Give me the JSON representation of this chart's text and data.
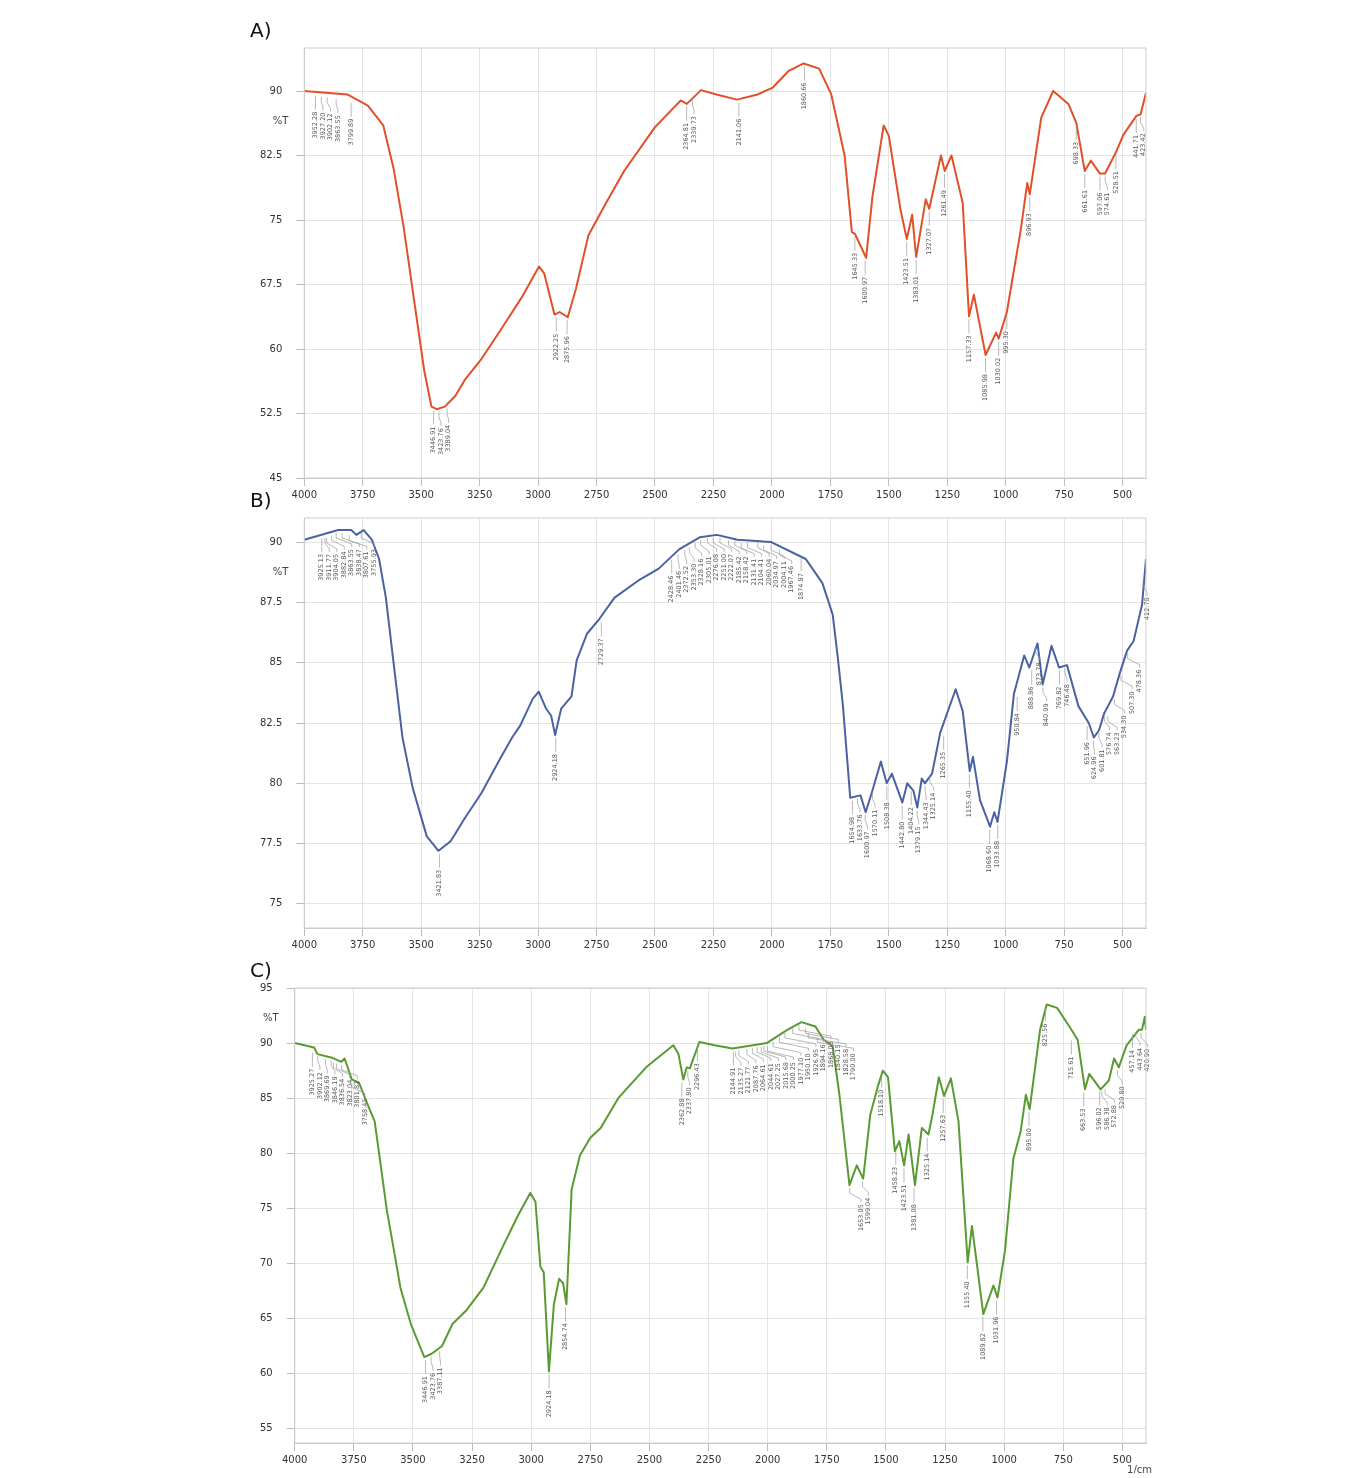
{
  "chart_data": [
    {
      "type": "line",
      "title": "A)",
      "ylabel": "%T",
      "xlim": [
        4000,
        400
      ],
      "xticks": [
        4000,
        3750,
        3500,
        3250,
        3000,
        2750,
        2500,
        2250,
        2000,
        1750,
        1500,
        1250,
        1000,
        750,
        500
      ],
      "ylim": [
        45,
        95
      ],
      "yticks": [
        45,
        52.5,
        60,
        67.5,
        75,
        82.5,
        90
      ],
      "grid": true,
      "series": [
        {
          "color": "#e0502a",
          "x": [
            4000,
            3816,
            3728,
            3662,
            3618,
            3575,
            3531,
            3487,
            3456,
            3434,
            3399,
            3355,
            3311,
            3246,
            3158,
            3070,
            2996,
            2974,
            2930,
            2908,
            2873,
            2838,
            2785,
            2719,
            2632,
            2500,
            2390,
            2364,
            2303,
            2237,
            2149,
            2061,
            1996,
            1930,
            1864,
            1798,
            1746,
            1689,
            1658,
            1645,
            1597,
            1570,
            1522,
            1500,
            1450,
            1423,
            1400,
            1383,
            1342,
            1327,
            1277,
            1261,
            1232,
            1184,
            1157,
            1136,
            1086,
            1041,
            1030,
            995,
            936,
            908,
            897,
            848,
            797,
            732,
            698,
            662,
            636,
            597,
            575,
            528,
            497,
            441,
            423,
            400
          ],
          "values": [
            90,
            89.6,
            88.3,
            86,
            81,
            74.2,
            65.8,
            57.5,
            53.3,
            53,
            53.3,
            54.5,
            56.5,
            58.7,
            62.3,
            66,
            69.6,
            68.8,
            64,
            64.3,
            63.7,
            67,
            73.2,
            76.5,
            80.7,
            85.8,
            88.9,
            88.5,
            90.1,
            89.6,
            89,
            89.6,
            90.4,
            92.3,
            93.2,
            92.6,
            89.6,
            82.5,
            73.6,
            73.4,
            70.6,
            77.7,
            86,
            84.8,
            76.2,
            72.8,
            75.6,
            70.7,
            77.4,
            76.3,
            82.5,
            80.7,
            82.5,
            77,
            63.8,
            66.3,
            59.3,
            61.9,
            61.2,
            64.3,
            73.8,
            79.3,
            78,
            86.9,
            90,
            88.5,
            86.3,
            80.7,
            81.9,
            80.4,
            80.4,
            82.9,
            84.9,
            87.1,
            87.3,
            89.8
          ]
        }
      ],
      "annotations": [
        {
          "text": "3952.28",
          "x": 3952.28,
          "y": 89.8
        },
        {
          "text": "3927.20",
          "x": 3927.2,
          "y": 89.7
        },
        {
          "text": "3902.12",
          "x": 3902.12,
          "y": 89.6
        },
        {
          "text": "3863.55",
          "x": 3863.55,
          "y": 89.4
        },
        {
          "text": "3799.89",
          "x": 3799.89,
          "y": 89
        },
        {
          "text": "3446.91",
          "x": 3446.91,
          "y": 53.2
        },
        {
          "text": "3423.76",
          "x": 3423.76,
          "y": 53
        },
        {
          "text": "3389.04",
          "x": 3389.04,
          "y": 53.4
        },
        {
          "text": "2922.25",
          "x": 2922.25,
          "y": 64
        },
        {
          "text": "2875.96",
          "x": 2875.96,
          "y": 63.7
        },
        {
          "text": "2364.81",
          "x": 2364.81,
          "y": 88.5
        },
        {
          "text": "2339.73",
          "x": 2339.73,
          "y": 89.3
        },
        {
          "text": "2141.06",
          "x": 2141.06,
          "y": 89
        },
        {
          "text": "1860.66",
          "x": 1860.66,
          "y": 93.2
        },
        {
          "text": "1645.33",
          "x": 1645.33,
          "y": 73.4
        },
        {
          "text": "1600.97",
          "x": 1600.97,
          "y": 70.6
        },
        {
          "text": "1423.51",
          "x": 1423.51,
          "y": 72.8
        },
        {
          "text": "1383.01",
          "x": 1383.01,
          "y": 70.7
        },
        {
          "text": "1327.07",
          "x": 1327.07,
          "y": 76.3
        },
        {
          "text": "1261.49",
          "x": 1261.49,
          "y": 80.7
        },
        {
          "text": "1157.33",
          "x": 1157.33,
          "y": 63.8
        },
        {
          "text": "1085.98",
          "x": 1085.98,
          "y": 59.3
        },
        {
          "text": "1030.02",
          "x": 1030.02,
          "y": 61.2
        },
        {
          "text": "995.30",
          "x": 995.3,
          "y": 64.3
        },
        {
          "text": "896.93",
          "x": 896.93,
          "y": 78
        },
        {
          "text": "698.33",
          "x": 698.33,
          "y": 86.3
        },
        {
          "text": "661.61",
          "x": 661.61,
          "y": 80.7
        },
        {
          "text": "597.06",
          "x": 597.06,
          "y": 80.4
        },
        {
          "text": "574.61",
          "x": 574.61,
          "y": 80.4
        },
        {
          "text": "528.51",
          "x": 528.51,
          "y": 82.9
        },
        {
          "text": "441.71",
          "x": 441.71,
          "y": 87.1
        },
        {
          "text": "423.42",
          "x": 423.42,
          "y": 87.3
        }
      ]
    },
    {
      "type": "line",
      "title": "B)",
      "ylabel": "%T",
      "xlim": [
        4000,
        400
      ],
      "xticks": [
        4000,
        3750,
        3500,
        3250,
        3000,
        2750,
        2500,
        2250,
        2000,
        1750,
        1500,
        1250,
        1000,
        750,
        500
      ],
      "ylim": [
        74,
        91
      ],
      "yticks": [
        75,
        77.5,
        80,
        82.5,
        85,
        87.5,
        90
      ],
      "grid": true,
      "series": [
        {
          "color": "#4a62a2",
          "x": [
            4000,
            3855,
            3799,
            3777,
            3746,
            3711,
            3680,
            3651,
            3623,
            3580,
            3536,
            3476,
            3426,
            3374,
            3317,
            3242,
            3169,
            3111,
            3076,
            3023,
            2997,
            2966,
            2944,
            2927,
            2901,
            2857,
            2835,
            2791,
            2739,
            2673,
            2572,
            2484,
            2397,
            2309,
            2235,
            2147,
            2003,
            1855,
            1784,
            1740,
            1718,
            1696,
            1665,
            1621,
            1599,
            1570,
            1534,
            1509,
            1487,
            1442,
            1421,
            1395,
            1378,
            1359,
            1346,
            1315,
            1280,
            1214,
            1184,
            1154,
            1140,
            1110,
            1067,
            1049,
            1035,
            995,
            965,
            921,
            899,
            864,
            842,
            804,
            772,
            738,
            689,
            645,
            623,
            601,
            579,
            541,
            511,
            481,
            453,
            417,
            400
          ],
          "values": [
            90.1,
            90.5,
            90.5,
            90.3,
            90.5,
            90.1,
            89.3,
            87.7,
            85.4,
            81.9,
            79.8,
            77.8,
            77.2,
            77.6,
            78.5,
            79.6,
            80.9,
            81.9,
            82.4,
            83.5,
            83.8,
            83.1,
            82.8,
            82,
            83.1,
            83.6,
            85.1,
            86.2,
            86.8,
            87.7,
            88.4,
            88.9,
            89.7,
            90.2,
            90.3,
            90.1,
            90,
            89.3,
            88.3,
            87,
            85.2,
            83.2,
            79.4,
            79.5,
            78.8,
            79.7,
            80.9,
            80,
            80.4,
            79.2,
            80,
            79.7,
            79,
            80.2,
            80,
            80.4,
            82.1,
            83.9,
            83,
            80.5,
            81.1,
            79.3,
            78.2,
            78.8,
            78.4,
            80.9,
            83.7,
            85.3,
            84.8,
            85.8,
            84.1,
            85.7,
            84.8,
            84.9,
            83.2,
            82.5,
            81.9,
            82.2,
            82.9,
            83.6,
            84.6,
            85.5,
            85.9,
            87.4,
            89.3
          ]
        }
      ],
      "annotations": [
        {
          "text": "3925.13",
          "x": 3925.13,
          "y": 90.3
        },
        {
          "text": "3911.77",
          "x": 3911.77,
          "y": 90.3
        },
        {
          "text": "3904.05",
          "x": 3904.05,
          "y": 90.3
        },
        {
          "text": "3882.84",
          "x": 3882.84,
          "y": 90.4
        },
        {
          "text": "3863.55",
          "x": 3863.55,
          "y": 90.5
        },
        {
          "text": "3838.47",
          "x": 3838.47,
          "y": 90.5
        },
        {
          "text": "3807.61",
          "x": 3807.61,
          "y": 90.4
        },
        {
          "text": "3755.93",
          "x": 3755.93,
          "y": 90.5
        },
        {
          "text": "3421.83",
          "x": 3421.83,
          "y": 77.2
        },
        {
          "text": "2924.18",
          "x": 2924.18,
          "y": 82
        },
        {
          "text": "2729.37",
          "x": 2729.37,
          "y": 86.8
        },
        {
          "text": "2428.46",
          "x": 2428.46,
          "y": 89.4
        },
        {
          "text": "2401.46",
          "x": 2401.46,
          "y": 89.6
        },
        {
          "text": "2372.52",
          "x": 2372.52,
          "y": 89.8
        },
        {
          "text": "2353.30",
          "x": 2353.3,
          "y": 89.9
        },
        {
          "text": "2328.16",
          "x": 2328.16,
          "y": 90.1
        },
        {
          "text": "2305.01",
          "x": 2305.01,
          "y": 90.2
        },
        {
          "text": "2276.08",
          "x": 2276.08,
          "y": 90.3
        },
        {
          "text": "2251.00",
          "x": 2251,
          "y": 90.3
        },
        {
          "text": "2222.07",
          "x": 2222.07,
          "y": 90.3
        },
        {
          "text": "2185.42",
          "x": 2185.42,
          "y": 90.2
        },
        {
          "text": "2158.42",
          "x": 2158.42,
          "y": 90.2
        },
        {
          "text": "2131.41",
          "x": 2131.41,
          "y": 90.1
        },
        {
          "text": "2104.41",
          "x": 2104.41,
          "y": 90.1
        },
        {
          "text": "2060.04",
          "x": 2060.04,
          "y": 90.1
        },
        {
          "text": "2034.97",
          "x": 2034.97,
          "y": 90
        },
        {
          "text": "2004.11",
          "x": 2004.11,
          "y": 90
        },
        {
          "text": "1967.46",
          "x": 1967.46,
          "y": 89.8
        },
        {
          "text": "1874.87",
          "x": 1874.87,
          "y": 89.5
        },
        {
          "text": "1654.98",
          "x": 1654.98,
          "y": 79.4
        },
        {
          "text": "1633.76",
          "x": 1633.76,
          "y": 79.5
        },
        {
          "text": "1600.97",
          "x": 1600.97,
          "y": 78.8
        },
        {
          "text": "1570.11",
          "x": 1570.11,
          "y": 79.7
        },
        {
          "text": "1508.38",
          "x": 1508.38,
          "y": 80
        },
        {
          "text": "1442.80",
          "x": 1442.8,
          "y": 79.2
        },
        {
          "text": "1404.22",
          "x": 1404.22,
          "y": 79.8
        },
        {
          "text": "1379.15",
          "x": 1379.15,
          "y": 79
        },
        {
          "text": "1344.43",
          "x": 1344.43,
          "y": 80
        },
        {
          "text": "1325.14",
          "x": 1325.14,
          "y": 80.4
        },
        {
          "text": "1265.35",
          "x": 1265.35,
          "y": 82.1
        },
        {
          "text": "1155.40",
          "x": 1155.4,
          "y": 80.5
        },
        {
          "text": "1068.60",
          "x": 1068.6,
          "y": 78.2
        },
        {
          "text": "1033.88",
          "x": 1033.88,
          "y": 78.4
        },
        {
          "text": "950.84",
          "x": 950.84,
          "y": 83.7
        },
        {
          "text": "888.86",
          "x": 888.86,
          "y": 84.8
        },
        {
          "text": "873.78",
          "x": 873.78,
          "y": 85.8
        },
        {
          "text": "840.99",
          "x": 840.99,
          "y": 84.1
        },
        {
          "text": "769.82",
          "x": 769.82,
          "y": 84.8
        },
        {
          "text": "746.48",
          "x": 746.48,
          "y": 84.9
        },
        {
          "text": "651.96",
          "x": 651.96,
          "y": 82.5
        },
        {
          "text": "624.96",
          "x": 624.96,
          "y": 81.9
        },
        {
          "text": "601.81",
          "x": 601.81,
          "y": 82.2
        },
        {
          "text": "576.74",
          "x": 576.74,
          "y": 82.9
        },
        {
          "text": "563.23",
          "x": 563.23,
          "y": 82.9
        },
        {
          "text": "534.30",
          "x": 534.3,
          "y": 83.6
        },
        {
          "text": "507.30",
          "x": 507.3,
          "y": 84.6
        },
        {
          "text": "478.36",
          "x": 478.36,
          "y": 85.5
        },
        {
          "text": "412.78",
          "x": 412.78,
          "y": 88.5
        }
      ]
    },
    {
      "type": "line",
      "title": "C)",
      "xlabel": "1/cm",
      "ylabel": "%T",
      "xlim": [
        4000,
        400
      ],
      "xticks": [
        4000,
        3750,
        3500,
        3250,
        3000,
        2750,
        2500,
        2250,
        2000,
        1750,
        1500,
        1250,
        1000,
        750,
        500
      ],
      "ylim": [
        53.7,
        95
      ],
      "yticks": [
        55,
        60,
        65,
        70,
        75,
        80,
        85,
        90,
        95
      ],
      "grid": true,
      "series": [
        {
          "color": "#5a9a32",
          "x": [
            4000,
            3918,
            3904,
            3846,
            3803,
            3789,
            3759,
            3728,
            3699,
            3662,
            3640,
            3611,
            3583,
            3553,
            3509,
            3452,
            3421,
            3377,
            3333,
            3276,
            3202,
            3114,
            3057,
            3004,
            2982,
            2961,
            2947,
            2925,
            2904,
            2882,
            2865,
            2851,
            2829,
            2794,
            2750,
            2706,
            2632,
            2514,
            2399,
            2377,
            2357,
            2342,
            2329,
            2289,
            2224,
            2149,
            2004,
            1917,
            1857,
            1798,
            1763,
            1725,
            1697,
            1654,
            1623,
            1596,
            1566,
            1535,
            1513,
            1491,
            1462,
            1443,
            1423,
            1404,
            1377,
            1348,
            1320,
            1303,
            1276,
            1254,
            1225,
            1193,
            1154,
            1136,
            1088,
            1045,
            1028,
            996,
            961,
            930,
            908,
            892,
            848,
            820,
            776,
            724,
            689,
            658,
            640,
            592,
            557,
            535,
            515,
            482,
            431,
            417,
            405,
            400
          ],
          "values": [
            90,
            89.6,
            89,
            88.7,
            88.3,
            88.6,
            86.7,
            86.4,
            84.8,
            82.9,
            79.5,
            74.9,
            71.5,
            67.8,
            64.5,
            61.5,
            61.8,
            62.5,
            64.5,
            65.7,
            67.8,
            71.8,
            74.3,
            76.4,
            75.6,
            69.7,
            69.2,
            60.2,
            66.3,
            68.6,
            68.2,
            66.3,
            76.7,
            79.8,
            81.4,
            82.3,
            85,
            87.8,
            89.8,
            89,
            86.7,
            87.8,
            87.7,
            90.1,
            89.8,
            89.5,
            90,
            91.2,
            91.9,
            91.5,
            90.3,
            89.7,
            85.4,
            77.1,
            78.9,
            77.7,
            83.5,
            86,
            87.5,
            86.9,
            80.2,
            81.1,
            78.9,
            81.7,
            77.1,
            82.3,
            81.7,
            83.5,
            86.9,
            85.2,
            86.8,
            82.9,
            70.1,
            73.4,
            65.4,
            68,
            66.9,
            71.2,
            79.5,
            82,
            85.3,
            84,
            91.2,
            93.5,
            93.2,
            91.5,
            90.3,
            85.8,
            87.2,
            85.8,
            86.6,
            88.6,
            87.8,
            89.8,
            91.2,
            91.2,
            92.4,
            91.2
          ]
        }
      ],
      "annotations": [
        {
          "text": "3925.27",
          "x": 3925.27,
          "y": 89.4
        },
        {
          "text": "3902.12",
          "x": 3902.12,
          "y": 89.1
        },
        {
          "text": "3869.69",
          "x": 3869.69,
          "y": 88.8
        },
        {
          "text": "3846.19",
          "x": 3846.19,
          "y": 88.7
        },
        {
          "text": "3836.54",
          "x": 3836.54,
          "y": 88.5
        },
        {
          "text": "3823.04",
          "x": 3823.04,
          "y": 88.4
        },
        {
          "text": "3801.82",
          "x": 3801.82,
          "y": 88.3
        },
        {
          "text": "3758.45",
          "x": 3758.45,
          "y": 86.7
        },
        {
          "text": "3446.91",
          "x": 3446.91,
          "y": 61.5
        },
        {
          "text": "3423.76",
          "x": 3423.76,
          "y": 61.8
        },
        {
          "text": "3387.11",
          "x": 3387.11,
          "y": 62.3
        },
        {
          "text": "2924.18",
          "x": 2924.18,
          "y": 60.2
        },
        {
          "text": "2854.74",
          "x": 2854.74,
          "y": 66.3
        },
        {
          "text": "2362.88",
          "x": 2362.88,
          "y": 86.7
        },
        {
          "text": "2337.80",
          "x": 2337.8,
          "y": 87.7
        },
        {
          "text": "2296.43",
          "x": 2296.43,
          "y": 89.9
        },
        {
          "text": "2144.91",
          "x": 2144.91,
          "y": 89.5
        },
        {
          "text": "2135.27",
          "x": 2135.27,
          "y": 89.5
        },
        {
          "text": "2121.77",
          "x": 2121.77,
          "y": 89.6
        },
        {
          "text": "2087.76",
          "x": 2087.76,
          "y": 89.7
        },
        {
          "text": "2064.61",
          "x": 2064.61,
          "y": 89.8
        },
        {
          "text": "2044.61",
          "x": 2044.61,
          "y": 89.9
        },
        {
          "text": "2027.25",
          "x": 2027.25,
          "y": 89.9
        },
        {
          "text": "2015.68",
          "x": 2015.68,
          "y": 90
        },
        {
          "text": "2000.25",
          "x": 2000.25,
          "y": 90
        },
        {
          "text": "1977.10",
          "x": 1977.1,
          "y": 90.4
        },
        {
          "text": "1950.10",
          "x": 1950.1,
          "y": 90.8
        },
        {
          "text": "1926.95",
          "x": 1926.95,
          "y": 91.2
        },
        {
          "text": "1894.16",
          "x": 1894.16,
          "y": 91.6
        },
        {
          "text": "1868.08",
          "x": 1868.08,
          "y": 91.9
        },
        {
          "text": "1840.15",
          "x": 1840.15,
          "y": 91.6
        },
        {
          "text": "1828.58",
          "x": 1828.58,
          "y": 91.2
        },
        {
          "text": "1790.00",
          "x": 1790,
          "y": 90.8
        },
        {
          "text": "1653.05",
          "x": 1653.05,
          "y": 77.1
        },
        {
          "text": "1599.04",
          "x": 1599.04,
          "y": 77.7
        },
        {
          "text": "1518.10",
          "x": 1518.1,
          "y": 87.5
        },
        {
          "text": "1458.23",
          "x": 1458.23,
          "y": 80.5
        },
        {
          "text": "1423.51",
          "x": 1423.51,
          "y": 78.9
        },
        {
          "text": "1381.08",
          "x": 1381.08,
          "y": 77.1
        },
        {
          "text": "1325.14",
          "x": 1325.14,
          "y": 81.7
        },
        {
          "text": "1257.63",
          "x": 1257.63,
          "y": 85.2
        },
        {
          "text": "1155.40",
          "x": 1155.4,
          "y": 70.1
        },
        {
          "text": "1089.82",
          "x": 1089.82,
          "y": 65.4
        },
        {
          "text": "1031.96",
          "x": 1031.96,
          "y": 66.9
        },
        {
          "text": "895.00",
          "x": 895,
          "y": 84
        },
        {
          "text": "825.56",
          "x": 825.56,
          "y": 93.5
        },
        {
          "text": "715.61",
          "x": 715.61,
          "y": 90.5
        },
        {
          "text": "663.53",
          "x": 663.53,
          "y": 85.8
        },
        {
          "text": "596.02",
          "x": 596.02,
          "y": 85.9
        },
        {
          "text": "586.38",
          "x": 586.38,
          "y": 85.9
        },
        {
          "text": "572.88",
          "x": 572.88,
          "y": 86.1
        },
        {
          "text": "520.80",
          "x": 520.8,
          "y": 87.8
        },
        {
          "text": "457.14",
          "x": 457.14,
          "y": 91.1
        },
        {
          "text": "443.64",
          "x": 443.64,
          "y": 91.3
        },
        {
          "text": "420.90",
          "x": 420.9,
          "y": 91.2
        }
      ]
    }
  ]
}
